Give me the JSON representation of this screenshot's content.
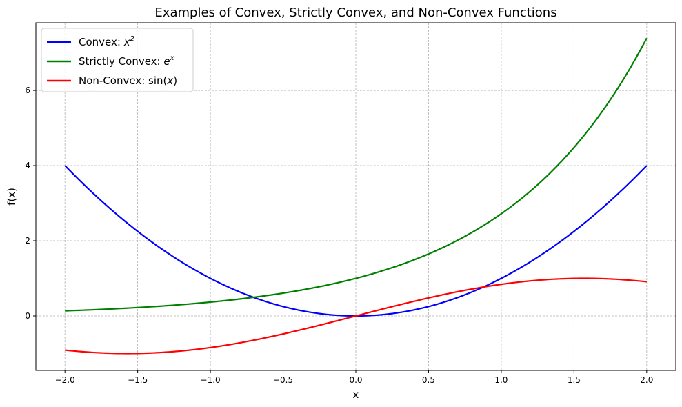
{
  "chart_data": {
    "type": "line",
    "title": "Examples of Convex, Strictly Convex, and Non-Convex Functions",
    "xlabel": "x",
    "ylabel": "f(x)",
    "xlim": [
      -2.2,
      2.2
    ],
    "ylim": [
      -1.45,
      7.8
    ],
    "x_ticks": [
      -2.0,
      -1.5,
      -1.0,
      -0.5,
      0.0,
      0.5,
      1.0,
      1.5,
      2.0
    ],
    "x_tick_labels": [
      "−2.0",
      "−1.5",
      "−1.0",
      "−0.5",
      "0.0",
      "0.5",
      "1.0",
      "1.5",
      "2.0"
    ],
    "y_ticks": [
      0,
      2,
      4,
      6
    ],
    "y_tick_labels": [
      "0",
      "2",
      "4",
      "6"
    ],
    "grid": true,
    "legend_position": "top-left",
    "x": [
      -2.0,
      -1.75,
      -1.5,
      -1.25,
      -1.0,
      -0.75,
      -0.5,
      -0.25,
      0.0,
      0.25,
      0.5,
      0.75,
      1.0,
      1.25,
      1.5,
      1.75,
      2.0
    ],
    "series": [
      {
        "name": "Convex: x^2",
        "legend_parts": {
          "prefix": "Convex: ",
          "base": "x",
          "sup": "2",
          "suffix": ""
        },
        "color": "#0000ff",
        "values": [
          4.0,
          3.0625,
          2.25,
          1.5625,
          1.0,
          0.5625,
          0.25,
          0.0625,
          0.0,
          0.0625,
          0.25,
          0.5625,
          1.0,
          1.5625,
          2.25,
          3.0625,
          4.0
        ]
      },
      {
        "name": "Strictly Convex: e^x",
        "legend_parts": {
          "prefix": "Strictly Convex: ",
          "base": "e",
          "sup": "x",
          "suffix": ""
        },
        "color": "#008000",
        "values": [
          0.135,
          0.174,
          0.223,
          0.287,
          0.368,
          0.472,
          0.607,
          0.779,
          1.0,
          1.284,
          1.649,
          2.117,
          2.718,
          3.49,
          4.482,
          5.755,
          7.389
        ]
      },
      {
        "name": "Non-Convex: sin(x)",
        "legend_parts": {
          "prefix": "Non-Convex: sin(",
          "base": "x",
          "sup": "",
          "suffix": ")"
        },
        "color": "#ff0000",
        "values": [
          -0.909,
          -0.984,
          -0.997,
          -0.949,
          -0.841,
          -0.682,
          -0.479,
          -0.247,
          0.0,
          0.247,
          0.479,
          0.682,
          0.841,
          0.949,
          0.997,
          0.984,
          0.909
        ]
      }
    ]
  }
}
